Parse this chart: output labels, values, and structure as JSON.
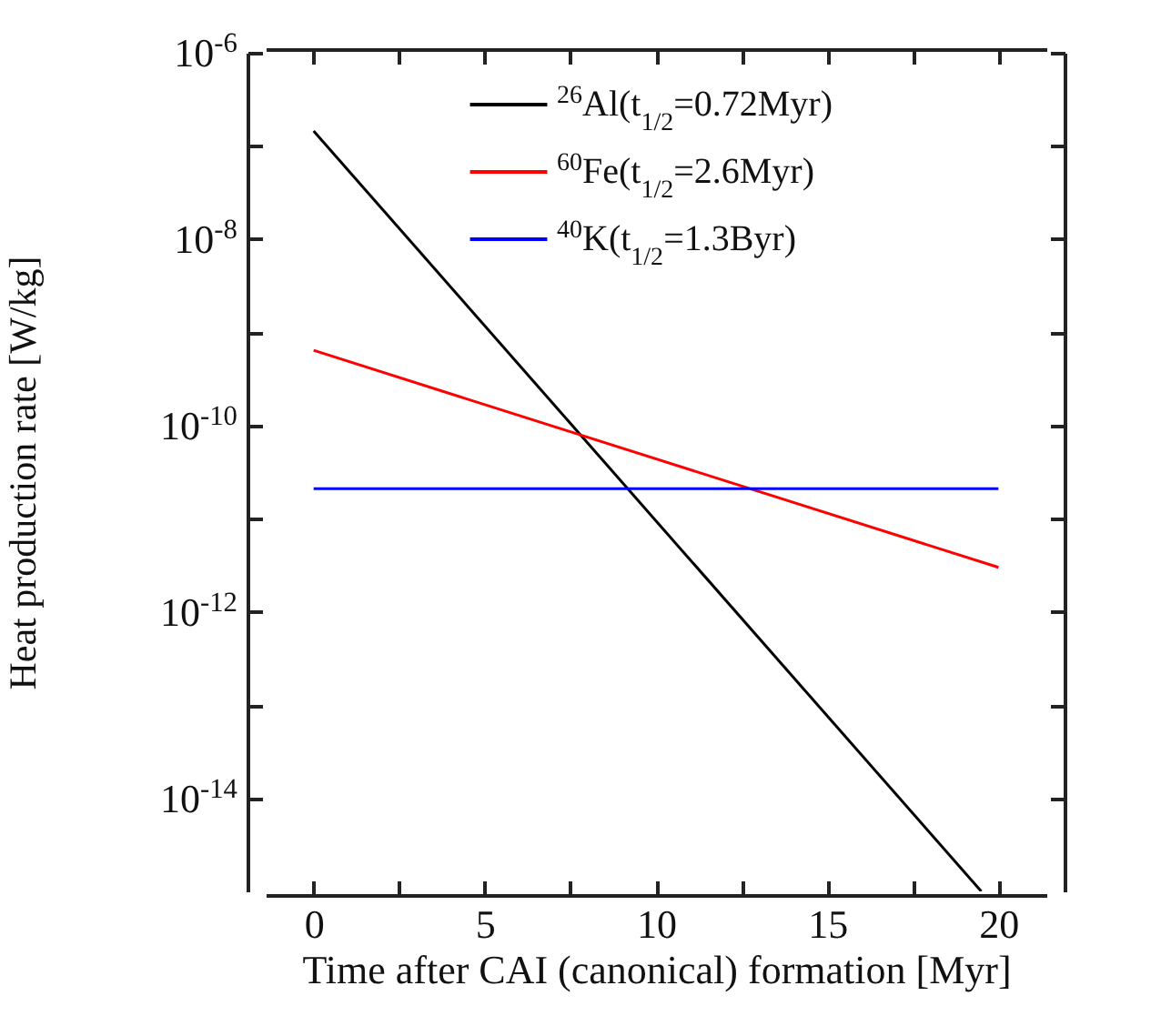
{
  "chart_data": {
    "type": "line",
    "xlabel": "Time after CAI (canonical) formation [Myr]",
    "ylabel": "Heat production rate [W/kg]",
    "log": "y",
    "legend": "top right",
    "marker": "none",
    "line_style": "solid",
    "grid": false,
    "xlim": [
      -1.4,
      21.4
    ],
    "ylim": [
      1e-15,
      1e-06
    ],
    "xticks": [
      0,
      {
        "value": 2.5,
        "label": null
      },
      5,
      {
        "value": 7.5,
        "label": null
      },
      10,
      {
        "value": 12.5,
        "label": null
      },
      15,
      {
        "value": 17.5,
        "label": null
      },
      20
    ],
    "yticks": [
      {
        "value": 1e-06,
        "label": "10$^{-6}$"
      },
      {
        "value": 1e-07,
        "label": null
      },
      {
        "value": 1e-08,
        "label": "10$^{-8}$"
      },
      {
        "value": 1e-09,
        "label": null
      },
      {
        "value": 1e-10,
        "label": "10$^{-10}$"
      },
      {
        "value": 1e-11,
        "label": null
      },
      {
        "value": 1e-12,
        "label": "10$^{-12}$"
      },
      {
        "value": 1e-13,
        "label": null
      },
      {
        "value": 1e-14,
        "label": "10$^{-14}$"
      }
    ],
    "series": [
      {
        "name": "$^{26}$Al(t$_{1/2}$=0.72Myr)",
        "color": "#000000",
        "x": [
          0,
          19.5
        ],
        "values": [
          1.45e-07,
          1e-15
        ]
      },
      {
        "name": "$^{60}$Fe(t$_{1/2}$=2.6Myr)",
        "color": "#ff0000",
        "x": [
          0,
          20
        ],
        "values": [
          6.4e-10,
          3e-12
        ]
      },
      {
        "name": "$^{40}$K(t$_{1/2}$=1.3Byr)",
        "color": "#0000ff",
        "x": [
          0,
          20
        ],
        "values": [
          2.1e-11,
          2.1e-11
        ]
      }
    ]
  }
}
